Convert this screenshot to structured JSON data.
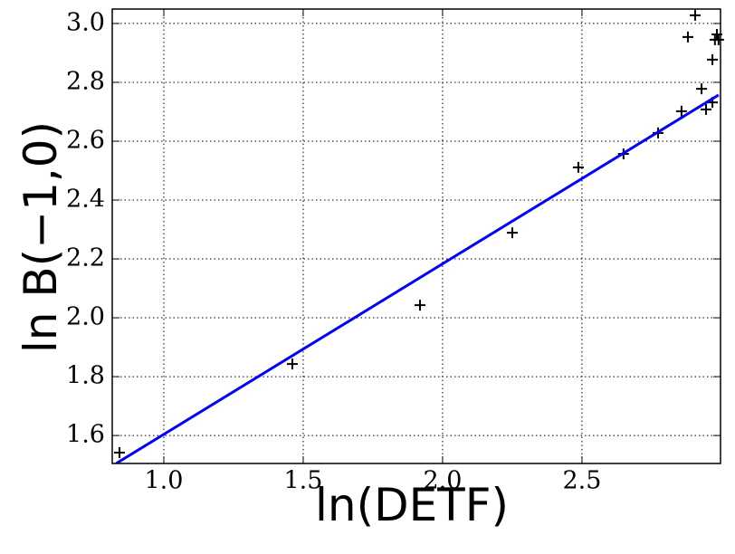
{
  "chart_data": {
    "type": "scatter",
    "xlabel": "ln(DETF)",
    "ylabel": "ln B(−1,0)",
    "xlim": [
      0.815,
      2.997
    ],
    "ylim": [
      1.505,
      3.049
    ],
    "xticks": [
      {
        "value": 1.0,
        "label": "1.0"
      },
      1.5,
      {
        "value": 2.0,
        "label": "2.0"
      },
      2.5
    ],
    "yticks": [
      1.6,
      1.8,
      {
        "value": 2.0,
        "label": "2.0"
      },
      2.2,
      2.4,
      2.6,
      2.8,
      {
        "value": 3.0,
        "label": "3.0"
      }
    ],
    "grid": true,
    "series": [
      {
        "type": "scatter",
        "color": "#000000",
        "x": [
          0.841,
          1.461,
          1.919,
          2.25,
          2.487,
          2.649,
          2.773,
          2.857,
          2.88,
          2.906,
          2.929,
          2.945,
          2.968,
          2.968,
          2.977,
          2.984,
          2.99
        ],
        "values": [
          1.542,
          1.843,
          2.043,
          2.289,
          2.511,
          2.557,
          2.628,
          2.702,
          2.954,
          3.028,
          2.778,
          2.708,
          2.877,
          2.732,
          2.945,
          2.963,
          2.945
        ]
      },
      {
        "type": "line",
        "color": "#0000ff",
        "x": [
          0.829,
          2.99
        ],
        "values": [
          1.505,
          2.757
        ]
      }
    ]
  }
}
